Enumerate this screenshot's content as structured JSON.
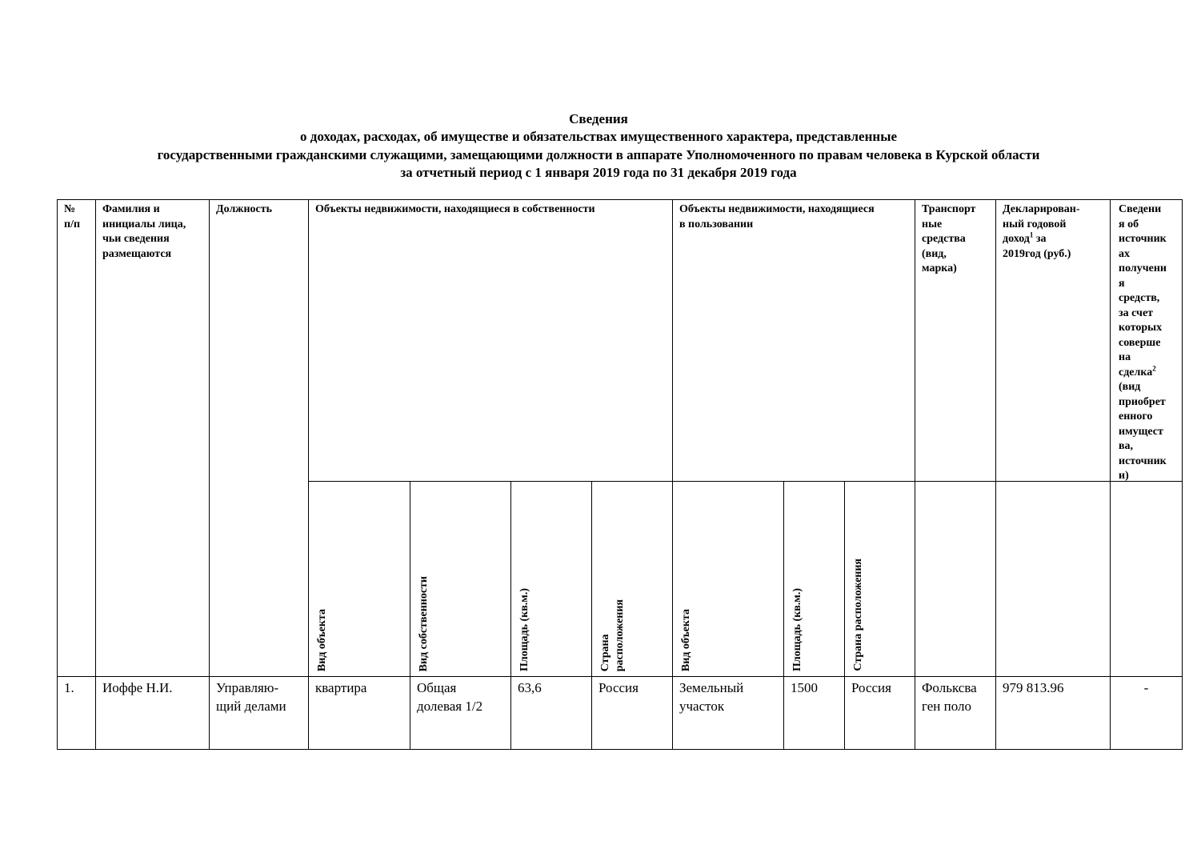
{
  "title": {
    "line1": "Сведения",
    "line2": "о доходах, расходах, об имуществе и обязательствах имущественного характера, представленные",
    "line3": "государственными гражданскими служащими, замещающими должности в аппарате Уполномоченного по правам человека в Курской области",
    "line4": "за отчетный период с 1 января 2019 года по 31 декабря 2019 года"
  },
  "headers": {
    "num": "№\nп/п",
    "name": "Фамилия и\nинициалы лица,\nчьи сведения\nразмещаются",
    "position": "Должность",
    "owned": "Объекты недвижимости, находящиеся в собственности",
    "used": "Объекты недвижимости, находящиеся\nв пользовании",
    "transport": "Транспорт\nные\nсредства\n (вид,\nмарка)",
    "income_pre": "Декларирован-\nный годовой\nдоход",
    "income_sup": "1",
    "income_post": " за\n2019год (руб.)",
    "sources_pre": "Сведени\nя об\nисточник\nах\nполучени\nя\nсредств,\nза счет\nкоторых\nсоверше\nна\nсделка",
    "sources_sup": "2",
    "sources_post": "\n(вид\nприобрет\nенного\nимущест\nва,\nисточник\nи)",
    "owned_sub": [
      "Вид объекта",
      "Вид собственности",
      "Площадь (кв.м.)",
      "Страна\nрасположения"
    ],
    "used_sub": [
      "Вид объекта",
      "Площадь (кв.м.)",
      "Страна расположения"
    ]
  },
  "rows": [
    {
      "num": "1.",
      "name": "Иоффе Н.И.",
      "position": "Управляю-\nщий делами",
      "owned_type": "квартира",
      "owned_ownership": "Общая\nдолевая 1/2",
      "owned_area": "63,6",
      "owned_country": "Россия",
      "used_type": "Земельный\nучасток",
      "used_area": "1500",
      "used_country": "Россия",
      "transport": "Фольксва\nген поло",
      "income": "979 813.96",
      "sources": "-"
    }
  ]
}
